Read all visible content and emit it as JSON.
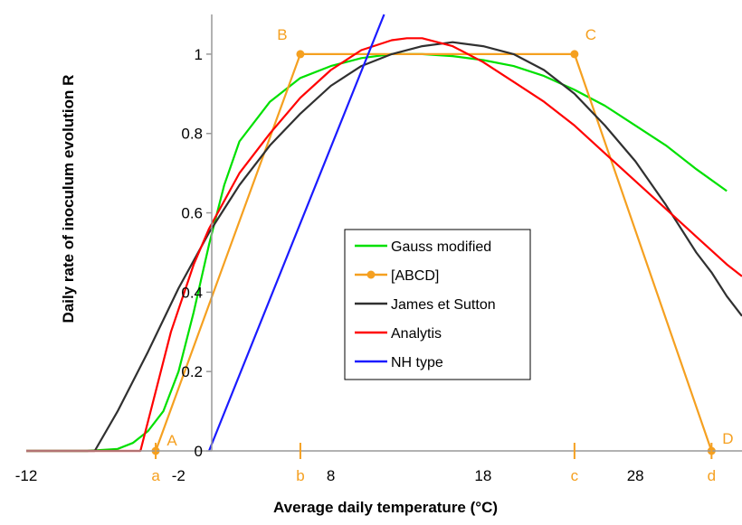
{
  "chart_data": {
    "type": "line",
    "title": "",
    "xlabel": "Average daily temperature (°C)",
    "ylabel": "Daily rate of inoculum evolution R",
    "xlim": [
      -12,
      35
    ],
    "ylim": [
      0,
      1.1
    ],
    "x_ticks": [
      -12,
      -2,
      8,
      18,
      28
    ],
    "y_ticks": [
      0,
      0.2,
      0.4,
      0.6,
      0.8,
      1
    ],
    "y_tick_labels": [
      "0",
      "0.2",
      "0.4",
      "0.6",
      "0.8",
      "1"
    ],
    "x_ticks_labels": [
      "-12",
      "-2",
      "8",
      "18",
      "28"
    ],
    "threshold_ticks": [
      {
        "label": "a",
        "x": -3.5
      },
      {
        "label": "b",
        "x": 6
      },
      {
        "label": "c",
        "x": 24
      },
      {
        "label": "d",
        "x": 33
      }
    ],
    "point_labels": [
      {
        "label": "A",
        "x": -3.5,
        "y": 0
      },
      {
        "label": "B",
        "x": 6,
        "y": 1
      },
      {
        "label": "C",
        "x": 24,
        "y": 1
      },
      {
        "label": "D",
        "x": 33,
        "y": 0
      }
    ],
    "legend_position": "center",
    "series": [
      {
        "name": "Gauss modified",
        "color": "#00e000",
        "x": [
          -12,
          -8,
          -6,
          -5,
          -4,
          -3,
          -2,
          -1,
          0,
          1,
          2,
          4,
          6,
          8,
          10,
          12,
          14,
          16,
          18,
          20,
          22,
          24,
          26,
          28,
          30,
          32,
          34
        ],
        "y": [
          0,
          0,
          0.005,
          0.02,
          0.05,
          0.1,
          0.2,
          0.35,
          0.52,
          0.67,
          0.78,
          0.88,
          0.94,
          0.97,
          0.99,
          1.0,
          1.0,
          0.995,
          0.985,
          0.97,
          0.945,
          0.91,
          0.87,
          0.82,
          0.77,
          0.71,
          0.655
        ]
      },
      {
        "name": "[ABCD]",
        "color": "#f5a020",
        "markers": true,
        "x": [
          -3.5,
          6,
          24,
          33
        ],
        "y": [
          0,
          1,
          1,
          0
        ]
      },
      {
        "name": "James et Sutton",
        "color": "#303030",
        "x": [
          -12,
          -7.5,
          -6,
          -4,
          -2,
          0,
          2,
          4,
          6,
          8,
          10,
          12,
          14,
          16,
          18,
          20,
          22,
          24,
          26,
          28,
          30,
          32,
          33,
          34,
          35
        ],
        "y": [
          0,
          0,
          0.1,
          0.25,
          0.41,
          0.55,
          0.67,
          0.77,
          0.85,
          0.92,
          0.97,
          1.0,
          1.02,
          1.03,
          1.02,
          1.0,
          0.96,
          0.9,
          0.82,
          0.73,
          0.62,
          0.5,
          0.45,
          0.39,
          0.34
        ]
      },
      {
        "name": "Analytis",
        "color": "#ff0000",
        "x": [
          -12,
          -4.5,
          -3.5,
          -2.5,
          -1,
          0,
          2,
          4,
          6,
          8,
          10,
          12,
          13,
          14,
          16,
          18,
          20,
          22,
          24,
          26,
          28,
          30,
          32,
          34,
          35
        ],
        "y": [
          0,
          0,
          0.15,
          0.3,
          0.47,
          0.56,
          0.7,
          0.8,
          0.89,
          0.96,
          1.01,
          1.035,
          1.04,
          1.04,
          1.02,
          0.98,
          0.93,
          0.88,
          0.82,
          0.75,
          0.68,
          0.61,
          0.54,
          0.47,
          0.44
        ]
      },
      {
        "name": "NH type",
        "color": "#1a1aff",
        "x": [
          0,
          11.5
        ],
        "y": [
          0,
          1.1
        ]
      }
    ]
  }
}
